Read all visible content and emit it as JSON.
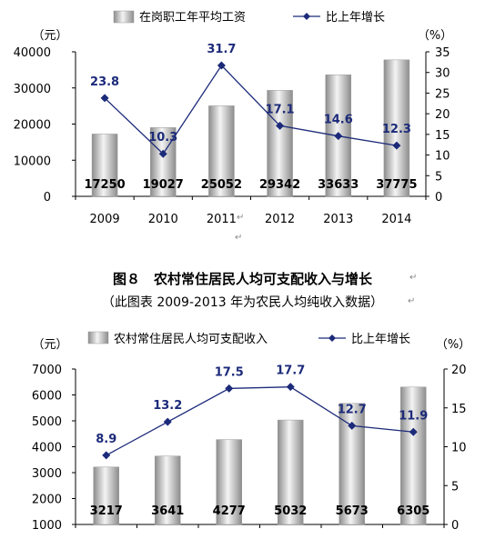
{
  "chart_data": [
    {
      "type": "bar+line",
      "categories": [
        "2009",
        "2010",
        "2011",
        "2012",
        "2013",
        "2014"
      ],
      "series": [
        {
          "name": "在岗职工年平均工资",
          "type": "bar",
          "values": [
            17250,
            19027,
            25052,
            29342,
            33633,
            37775
          ]
        },
        {
          "name": "比上年增长",
          "type": "line",
          "values": [
            23.8,
            10.3,
            31.7,
            17.1,
            14.6,
            12.3
          ]
        }
      ],
      "y_left": {
        "unit": "（元）",
        "lim": [
          0,
          40000
        ],
        "ticks": [
          0,
          10000,
          20000,
          30000,
          40000
        ]
      },
      "y_right": {
        "unit": "（%）",
        "lim": [
          0,
          35
        ],
        "ticks": [
          0,
          5,
          10,
          15,
          20,
          25,
          30,
          35
        ]
      },
      "legend": "top"
    },
    {
      "type": "bar+line",
      "title": "图８　农村常住居民人均可支配收入与增长",
      "subtitle": "（此图表 2009-2013 年为农民人均纯收入数据）",
      "categories": [
        "2009",
        "2010",
        "2011",
        "2012",
        "2013",
        "2014"
      ],
      "series": [
        {
          "name": "农村常住居民人均可支配收入",
          "type": "bar",
          "values": [
            3217,
            3641,
            4277,
            5032,
            5673,
            6305
          ]
        },
        {
          "name": "比上年增长",
          "type": "line",
          "values": [
            8.9,
            13.2,
            17.5,
            17.7,
            12.7,
            11.9
          ]
        }
      ],
      "y_left": {
        "unit": "（元）",
        "lim": [
          1000,
          7000
        ],
        "ticks": [
          1000,
          2000,
          3000,
          4000,
          5000,
          6000,
          7000
        ]
      },
      "y_right": {
        "unit": "（%）",
        "lim": [
          0,
          20
        ],
        "ticks": [
          0,
          5,
          10,
          15,
          20
        ]
      },
      "legend": "top"
    }
  ]
}
